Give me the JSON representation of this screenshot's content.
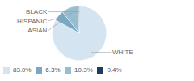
{
  "chart_data": {
    "type": "pie",
    "categories": [
      "WHITE",
      "ASIAN",
      "HISPANIC",
      "BLACK"
    ],
    "values": [
      83.0,
      6.3,
      10.3,
      0.4
    ],
    "value_labels": [
      "83.0%",
      "6.3%",
      "10.3%",
      "0.4%"
    ],
    "colors": [
      "#d4e4f0",
      "#7aa8c4",
      "#96bdd0",
      "#1e3d5c"
    ],
    "legend": "lower left"
  }
}
